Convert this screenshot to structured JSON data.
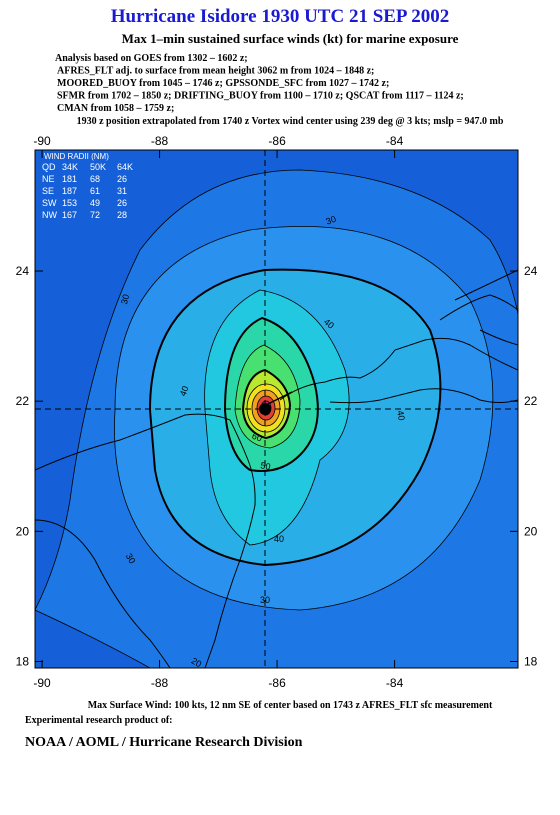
{
  "header": {
    "title": "Hurricane Isidore 1930 UTC 21 SEP 2002",
    "subtitle": "Max 1–min sustained surface winds (kt) for marine exposure",
    "analysis": [
      "Analysis based on  GOES from 1302 – 1602 z;",
      "AFRES_FLT adj. to surface from mean height 3062 m from 1024 – 1848 z;",
      "MOORED_BUOY from 1045 – 1746 z;  GPSSONDE_SFC from 1027 – 1742 z;",
      "SFMR from 1702 – 1850 z;  DRIFTING_BUOY from 1100 – 1710 z;  QSCAT from 1117 – 1124 z;",
      "CMAN from 1058 – 1759 z;"
    ],
    "position": "1930 z position extrapolated from 1740 z Vortex wind center using 239 deg @ 3 kts; mslp = 947.0 mb"
  },
  "map": {
    "xlim": [
      -90.12,
      -81.9
    ],
    "ylim": [
      17.9,
      25.86
    ],
    "xticks": [
      -90,
      -88,
      -86,
      -84
    ],
    "yticks": [
      24,
      22,
      20,
      18
    ],
    "center": [
      -86.2,
      21.9
    ],
    "contour_labels": [
      "30",
      "30",
      "30",
      "40",
      "40",
      "40",
      "40",
      "50",
      "60",
      "30",
      "20"
    ]
  },
  "wind_radii": {
    "title": "WIND RADII (NM)",
    "columns": [
      "QD",
      "34K",
      "50K",
      "64K"
    ],
    "rows": [
      [
        "NE",
        "181",
        "68",
        "26"
      ],
      [
        "SE",
        "187",
        "61",
        "31"
      ],
      [
        "SW",
        "153",
        "49",
        "26"
      ],
      [
        "NW",
        "167",
        "72",
        "28"
      ]
    ]
  },
  "footer": {
    "max_wind": "Max Surface Wind: 100 kts, 12 nm SE of center based on 1743 z AFRES_FLT sfc measurement",
    "note": "Experimental research product of:",
    "org": "NOAA / AOML / Hurricane Research Division"
  }
}
